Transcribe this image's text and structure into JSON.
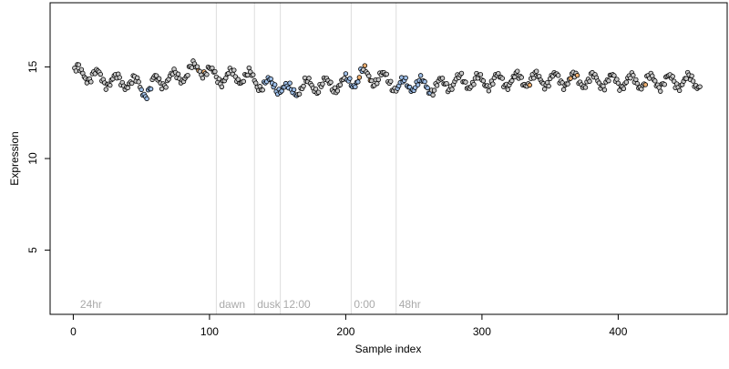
{
  "chart_data": {
    "type": "scatter",
    "title": "",
    "xlabel": "Sample index",
    "ylabel": "Expression",
    "xlim": [
      -17,
      480
    ],
    "ylim": [
      1.5,
      18.5
    ],
    "xticks": [
      0,
      100,
      200,
      300,
      400
    ],
    "yticks": [
      5,
      10,
      15
    ],
    "grid": false,
    "legend": "none",
    "colors": {
      "point_default": "#c8c8c8",
      "point_blue": "#9fbfe8",
      "point_orange": "#f0b070",
      "marker_edge": "#000000",
      "period_line": "#dddddd",
      "period_label": "#aaaaaa"
    },
    "period_markers": [
      {
        "x": 3,
        "label": "24hr",
        "line": false
      },
      {
        "x": 105,
        "label": "dawn",
        "line": true
      },
      {
        "x": 133,
        "label": "dusk",
        "line": true
      },
      {
        "x": 152,
        "label": "12:00",
        "line": true
      },
      {
        "x": 204,
        "label": "0:00",
        "line": true
      },
      {
        "x": 237,
        "label": "48hr",
        "line": true
      }
    ],
    "points_n": 460,
    "trend": [
      [
        1,
        14.7
      ],
      [
        10,
        14.6
      ],
      [
        20,
        14.4
      ],
      [
        30,
        14.2
      ],
      [
        40,
        14.2
      ],
      [
        48,
        14.0
      ],
      [
        53,
        13.7
      ],
      [
        57,
        13.8
      ],
      [
        60,
        14.2
      ],
      [
        75,
        14.4
      ],
      [
        85,
        14.7
      ],
      [
        92,
        15.0
      ],
      [
        97,
        14.8
      ],
      [
        103,
        14.5
      ],
      [
        110,
        14.4
      ],
      [
        120,
        14.5
      ],
      [
        130,
        14.4
      ],
      [
        140,
        14.0
      ],
      [
        150,
        14.0
      ],
      [
        153,
        13.9
      ],
      [
        158,
        13.6
      ],
      [
        163,
        13.8
      ],
      [
        175,
        14.0
      ],
      [
        190,
        14.0
      ],
      [
        200,
        14.1
      ],
      [
        207,
        14.3
      ],
      [
        212,
        14.6
      ],
      [
        220,
        14.4
      ],
      [
        233,
        14.3
      ],
      [
        238,
        13.8
      ],
      [
        245,
        14.1
      ],
      [
        255,
        14.0
      ],
      [
        265,
        13.9
      ],
      [
        280,
        14.2
      ],
      [
        300,
        14.2
      ],
      [
        330,
        14.3
      ],
      [
        360,
        14.3
      ],
      [
        400,
        14.2
      ],
      [
        430,
        14.2
      ],
      [
        461,
        14.2
      ]
    ],
    "wave": {
      "amplitude": 0.36,
      "period": 14
    },
    "blue_ranges": [
      [
        50,
        57
      ],
      [
        140,
        164
      ],
      [
        200,
        212
      ],
      [
        238,
        262
      ]
    ],
    "orange_indices": [
      92,
      96,
      210,
      214,
      218,
      335,
      365,
      370,
      420
    ]
  }
}
